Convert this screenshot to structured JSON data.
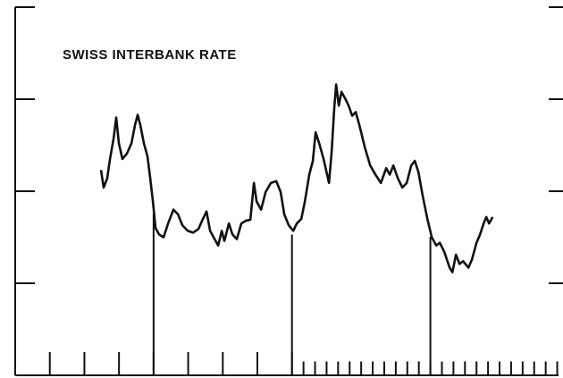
{
  "chart_data": {
    "type": "line",
    "title": "SWISS INTERBANK RATE",
    "xlim": [
      0,
      47.5
    ],
    "ylim": [
      0,
      4
    ],
    "yticks": [
      1,
      2,
      3,
      4
    ],
    "xticks": [
      3,
      6,
      9,
      12,
      15,
      18,
      21,
      24,
      25,
      26,
      27,
      28,
      29,
      30,
      31,
      32,
      33,
      34,
      35,
      36,
      37,
      38,
      39,
      40,
      41,
      42,
      43,
      44,
      45,
      46,
      47
    ],
    "year_ticks": [
      12,
      24,
      36
    ],
    "series": [
      {
        "color": "#111111",
        "x": [
          7.44,
          7.67,
          7.98,
          8.22,
          8.53,
          8.76,
          8.99,
          9.3,
          9.69,
          10.08,
          10.39,
          10.62,
          10.85,
          11.16,
          11.47,
          11.71,
          11.94,
          12.17,
          12.48,
          12.87,
          13.26,
          13.72,
          14.11,
          14.5,
          14.96,
          15.43,
          15.89,
          16.28,
          16.59,
          16.9,
          17.29,
          17.6,
          17.91,
          18.14,
          18.53,
          18.84,
          19.22,
          19.61,
          20.0,
          20.39,
          20.7,
          20.93,
          21.32,
          21.71,
          22.17,
          22.64,
          23.02,
          23.33,
          23.72,
          24.11,
          24.42,
          24.81,
          25.12,
          25.5,
          25.81,
          26.05,
          26.36,
          26.74,
          27.21,
          27.44,
          27.67,
          27.83,
          28.06,
          28.29,
          28.6,
          28.91,
          29.22,
          29.53,
          29.84,
          30.31,
          30.78,
          31.24,
          31.71,
          32.17,
          32.48,
          32.79,
          33.18,
          33.57,
          33.95,
          34.34,
          34.65,
          34.96,
          35.35,
          35.74,
          36.12,
          36.51,
          36.82,
          37.21,
          37.67,
          37.91,
          38.22,
          38.53,
          38.84,
          39.3,
          39.61,
          40.0,
          40.31,
          40.62,
          40.85,
          41.09,
          41.4
        ],
        "values": [
          2.23,
          2.04,
          2.14,
          2.35,
          2.57,
          2.8,
          2.52,
          2.35,
          2.41,
          2.52,
          2.72,
          2.83,
          2.72,
          2.52,
          2.38,
          2.14,
          1.89,
          1.6,
          1.53,
          1.5,
          1.65,
          1.8,
          1.75,
          1.63,
          1.57,
          1.55,
          1.59,
          1.7,
          1.78,
          1.57,
          1.48,
          1.41,
          1.57,
          1.46,
          1.65,
          1.53,
          1.48,
          1.65,
          1.68,
          1.69,
          2.09,
          1.89,
          1.8,
          1.99,
          2.09,
          2.11,
          1.99,
          1.75,
          1.63,
          1.57,
          1.65,
          1.7,
          1.89,
          2.18,
          2.33,
          2.64,
          2.52,
          2.35,
          2.09,
          2.43,
          2.91,
          3.16,
          2.93,
          3.08,
          3.01,
          2.93,
          2.82,
          2.86,
          2.72,
          2.48,
          2.28,
          2.18,
          2.09,
          2.25,
          2.18,
          2.28,
          2.14,
          2.04,
          2.09,
          2.28,
          2.33,
          2.21,
          1.94,
          1.7,
          1.5,
          1.41,
          1.44,
          1.34,
          1.17,
          1.12,
          1.31,
          1.21,
          1.24,
          1.17,
          1.26,
          1.44,
          1.53,
          1.65,
          1.72,
          1.65,
          1.72
        ]
      }
    ]
  }
}
